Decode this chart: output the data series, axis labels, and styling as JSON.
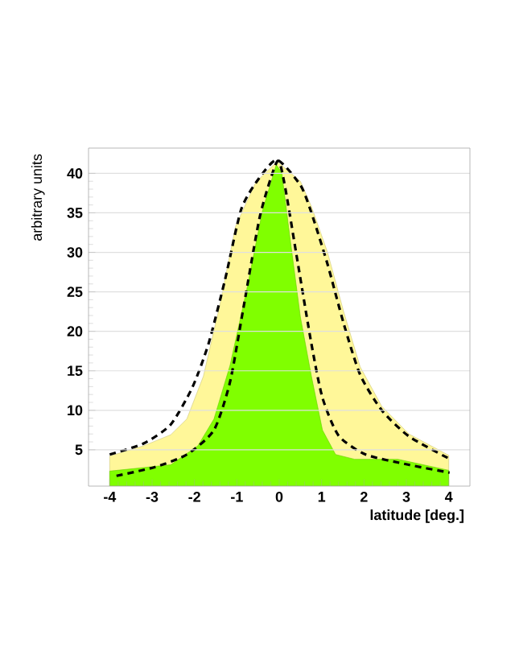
{
  "chart_data": {
    "type": "area",
    "xlabel": "latitude [deg.]",
    "ylabel": "arbitrary units",
    "xlim": [
      -4.5,
      4.5
    ],
    "ylim": [
      0.4,
      43.2
    ],
    "xticks": [
      -4,
      -3,
      -2,
      -1,
      0,
      1,
      2,
      3,
      4
    ],
    "yticks": [
      5,
      10,
      15,
      20,
      25,
      30,
      35,
      40
    ],
    "grid": "y",
    "series": [
      {
        "color": "#fff799",
        "x": [
          -4,
          -3.2,
          -2.56,
          -2.18,
          -1.79,
          -1.41,
          -1.03,
          -0.55,
          -0.05,
          0.5,
          0.76,
          1.14,
          1.52,
          1.91,
          2.42,
          3.06,
          4
        ],
        "values": [
          4.2,
          5.5,
          6.9,
          8.9,
          14.3,
          23.1,
          33.3,
          38.9,
          41.5,
          39,
          35.8,
          30,
          22.5,
          15.5,
          10.5,
          7,
          4.3
        ]
      },
      {
        "color": "#80ff00",
        "x": [
          -4,
          -2.56,
          -1.92,
          -1.54,
          -1.16,
          -0.77,
          -0.39,
          -0.07,
          0.06,
          0.25,
          0.5,
          0.76,
          1.02,
          1.33,
          1.78,
          2.8,
          4
        ],
        "values": [
          2.3,
          3.1,
          5.5,
          8.9,
          15.7,
          25.2,
          35.4,
          41.1,
          40.1,
          32,
          21.8,
          14.3,
          7.5,
          4.4,
          3.8,
          3.8,
          2.4
        ]
      },
      {
        "type": "line",
        "line_style": "dashed",
        "color": "#000000",
        "x": [
          -4,
          -3.2,
          -2.56,
          -2.05,
          -1.67,
          -1.28,
          -0.9,
          -0.5,
          -0.05,
          0.5,
          0.76,
          1.14,
          1.52,
          1.91,
          2.42,
          3.06,
          4
        ],
        "values": [
          4.4,
          5.8,
          8.2,
          12.9,
          18.4,
          26.5,
          35.4,
          39.2,
          41.7,
          38.5,
          35,
          28.5,
          21,
          14.5,
          10,
          6.7,
          3.9
        ]
      },
      {
        "type": "line",
        "line_style": "dashed",
        "color": "#000000",
        "x": [
          -3.84,
          -2.94,
          -2.18,
          -1.54,
          -1.16,
          -0.84,
          -0.45,
          -0.05,
          0.12,
          0.44,
          0.76,
          1.02,
          1.4,
          2.04,
          3.06,
          4.02
        ],
        "values": [
          1.7,
          2.8,
          4.4,
          7.5,
          13.6,
          23.1,
          34.7,
          41.5,
          38.8,
          28.6,
          18.4,
          11.6,
          6.8,
          4.4,
          3.1,
          2.1
        ]
      }
    ]
  }
}
